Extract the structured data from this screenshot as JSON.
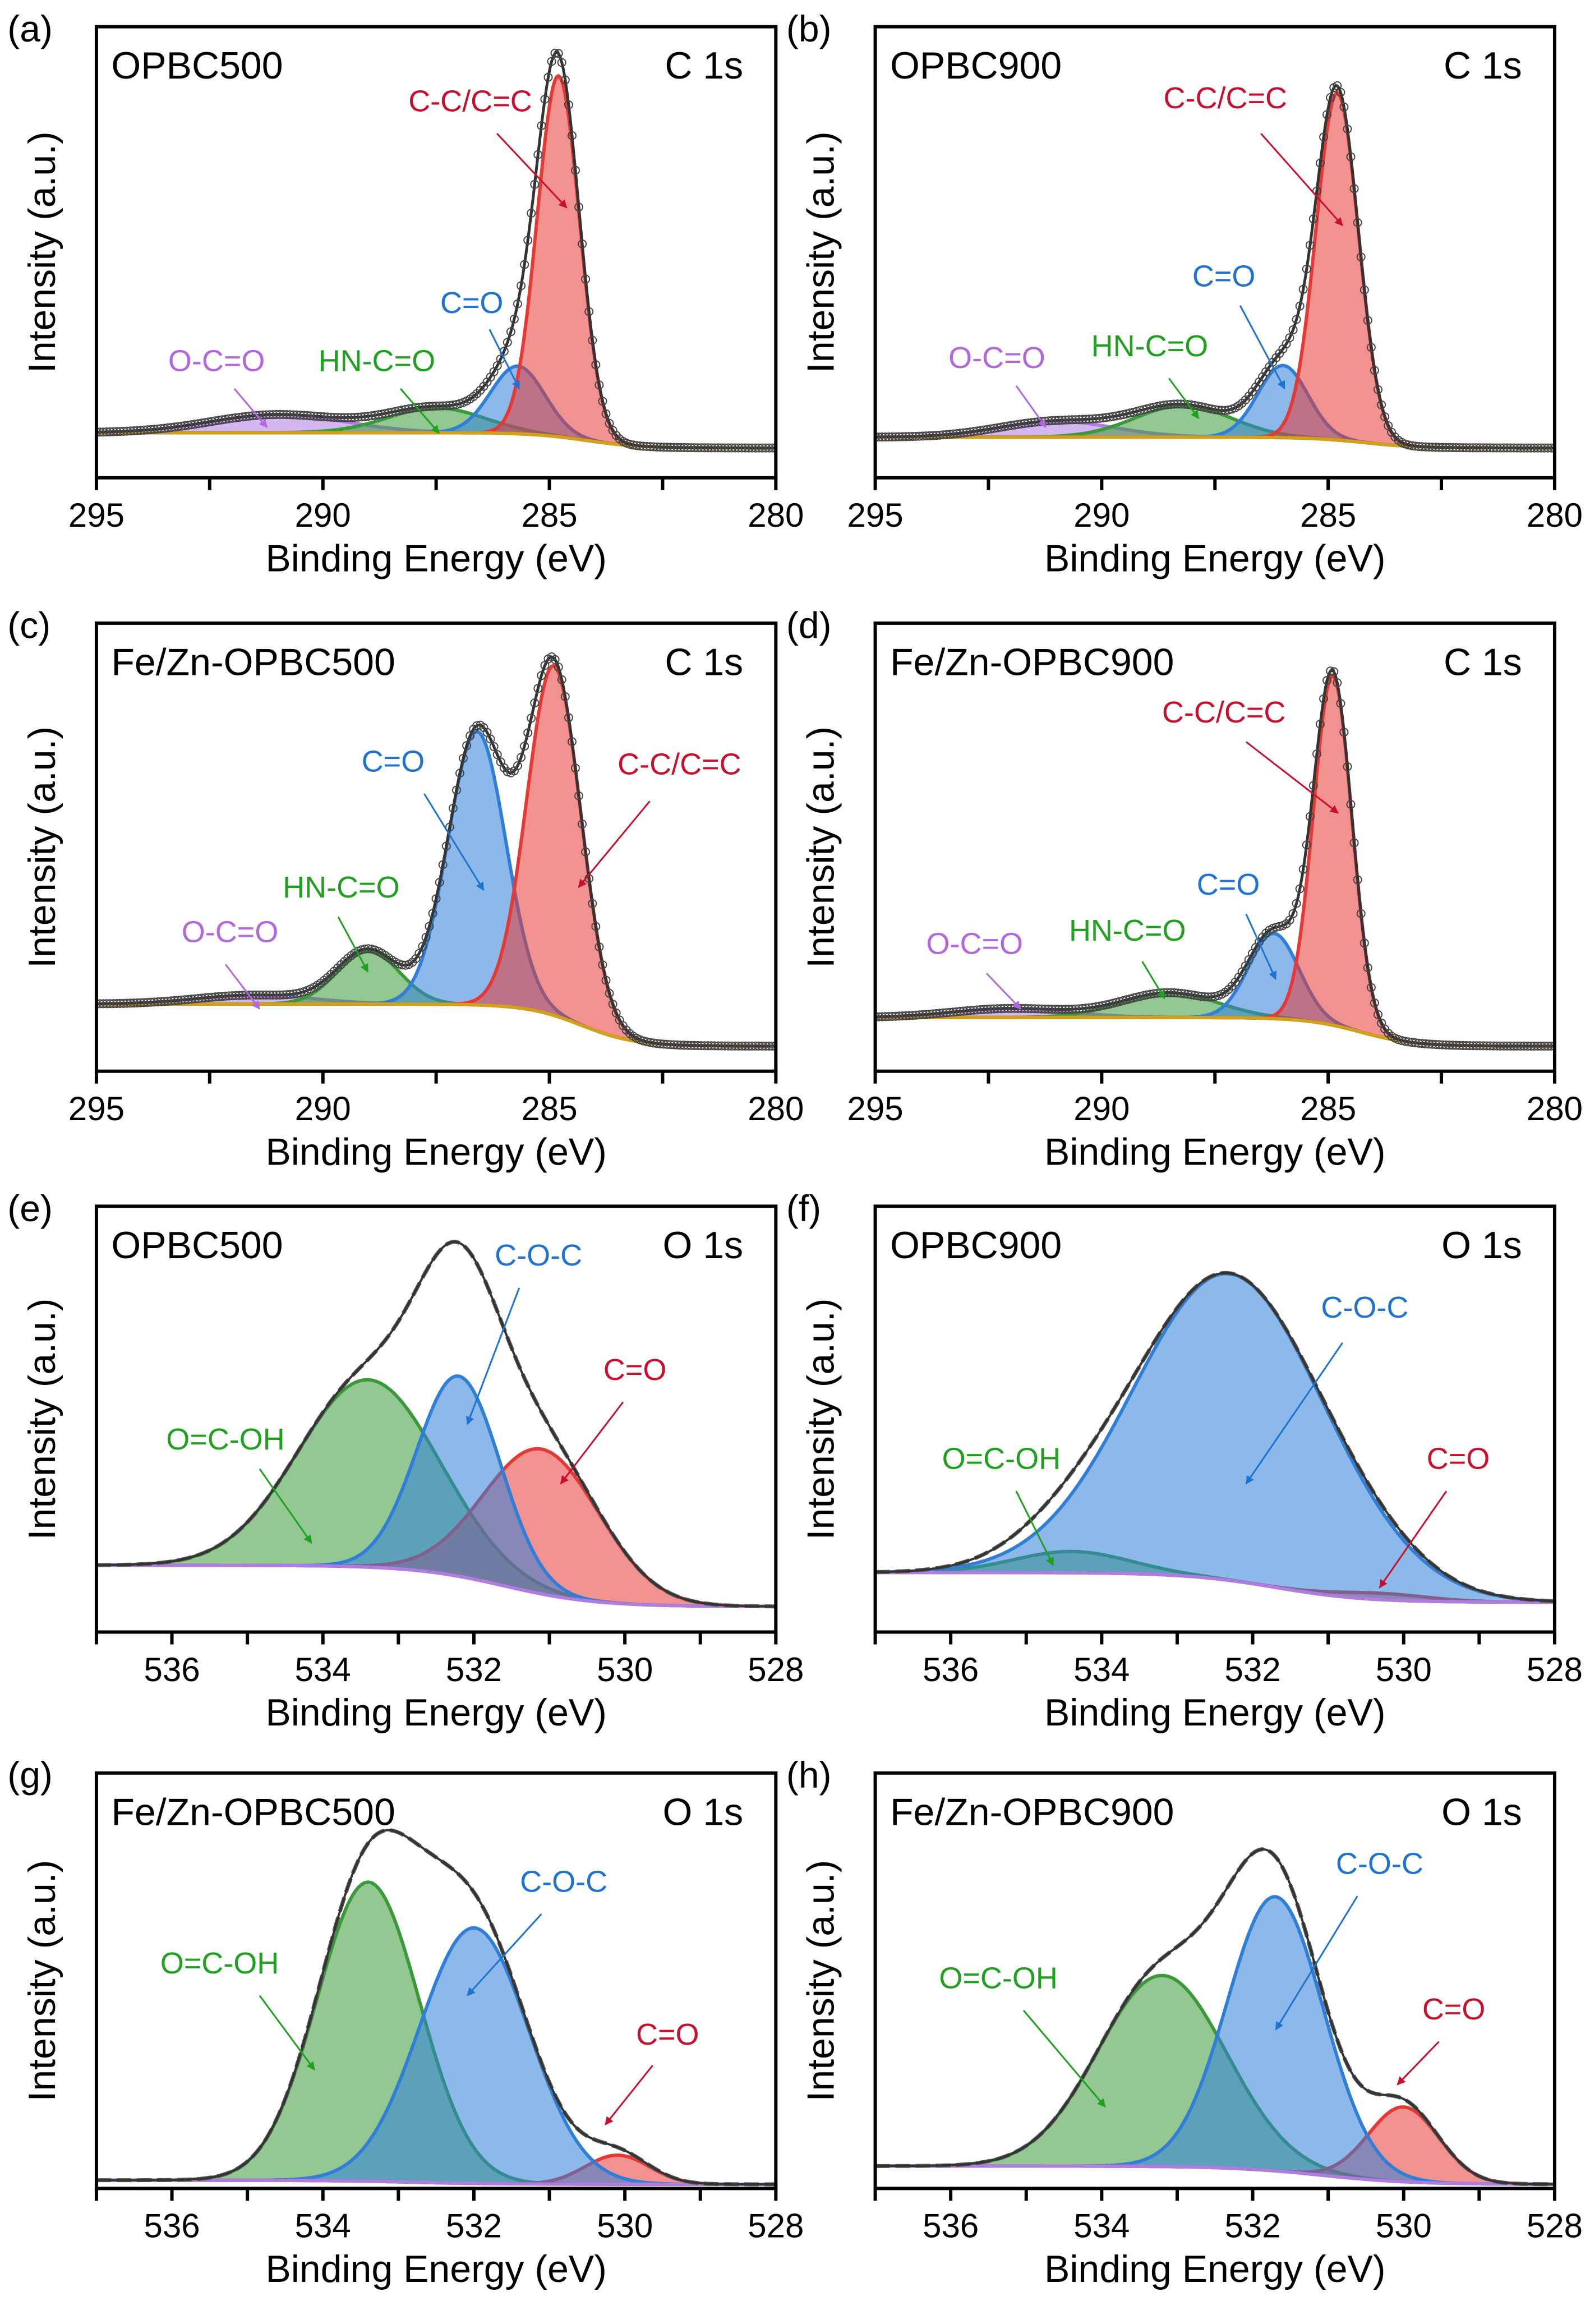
{
  "figure": {
    "xlabel": "Binding Energy (eV)",
    "ylabel": "Intensity (a.u.)"
  },
  "chart_data": [
    {
      "panel": "(a)",
      "sample": "OPBC500",
      "region": "C 1s",
      "type": "area",
      "xlim": [
        295,
        280
      ],
      "ylim": [
        0,
        1
      ],
      "xticks": [
        295,
        290,
        285,
        280
      ],
      "minor_step": 2.5,
      "measured_style": "circles",
      "baseline": [
        0.1,
        0.066
      ],
      "peaks": [
        {
          "name": "C-C/C=C",
          "center": 284.8,
          "fwhm": 1.1,
          "height": 0.8,
          "color": "#e53935"
        },
        {
          "name": "C=O",
          "center": 285.7,
          "fwhm": 1.4,
          "height": 0.15,
          "color": "#2f7fd8"
        },
        {
          "name": "HN-C=O",
          "center": 287.5,
          "fwhm": 2.5,
          "height": 0.055,
          "color": "#3a9a3a"
        },
        {
          "name": "O-C=O",
          "center": 291.0,
          "fwhm": 3.5,
          "height": 0.04,
          "color": "#b07ce0"
        }
      ]
    },
    {
      "panel": "(b)",
      "sample": "OPBC900",
      "region": "C 1s",
      "type": "area",
      "xlim": [
        295,
        280
      ],
      "ylim": [
        0,
        1
      ],
      "xticks": [
        295,
        290,
        285,
        280
      ],
      "minor_step": 2.5,
      "measured_style": "circles",
      "baseline": [
        0.09,
        0.066
      ],
      "peaks": [
        {
          "name": "C-C/C=C",
          "center": 284.8,
          "fwhm": 1.1,
          "height": 0.77,
          "color": "#e53935"
        },
        {
          "name": "C=O",
          "center": 286.0,
          "fwhm": 1.3,
          "height": 0.16,
          "color": "#2f7fd8"
        },
        {
          "name": "HN-C=O",
          "center": 288.2,
          "fwhm": 2.5,
          "height": 0.07,
          "color": "#3a9a3a"
        },
        {
          "name": "O-C=O",
          "center": 291.0,
          "fwhm": 3.0,
          "height": 0.035,
          "color": "#b07ce0"
        }
      ]
    },
    {
      "panel": "(c)",
      "sample": "Fe/Zn-OPBC500",
      "region": "C 1s",
      "type": "area",
      "xlim": [
        295,
        280
      ],
      "ylim": [
        0,
        1
      ],
      "xticks": [
        295,
        290,
        285,
        280
      ],
      "minor_step": 2.5,
      "measured_style": "circles",
      "baseline": [
        0.15,
        0.056
      ],
      "peaks": [
        {
          "name": "C-C/C=C",
          "center": 284.9,
          "fwhm": 1.4,
          "height": 0.78,
          "color": "#e53935"
        },
        {
          "name": "C=O",
          "center": 286.6,
          "fwhm": 1.5,
          "height": 0.61,
          "color": "#2f7fd8"
        },
        {
          "name": "HN-C=O",
          "center": 289.0,
          "fwhm": 1.6,
          "height": 0.12,
          "color": "#3a9a3a"
        },
        {
          "name": "O-C=O",
          "center": 291.5,
          "fwhm": 3.0,
          "height": 0.02,
          "color": "#b07ce0"
        }
      ]
    },
    {
      "panel": "(d)",
      "sample": "Fe/Zn-OPBC900",
      "region": "C 1s",
      "type": "area",
      "xlim": [
        295,
        280
      ],
      "ylim": [
        0,
        1
      ],
      "xticks": [
        295,
        290,
        285,
        280
      ],
      "minor_step": 2.5,
      "measured_style": "circles",
      "baseline": [
        0.12,
        0.056
      ],
      "peaks": [
        {
          "name": "C-C/C=C",
          "center": 284.9,
          "fwhm": 1.0,
          "height": 0.78,
          "color": "#e53935"
        },
        {
          "name": "C=O",
          "center": 286.2,
          "fwhm": 1.3,
          "height": 0.19,
          "color": "#2f7fd8"
        },
        {
          "name": "HN-C=O",
          "center": 288.5,
          "fwhm": 2.5,
          "height": 0.055,
          "color": "#3a9a3a"
        },
        {
          "name": "O-C=O",
          "center": 292.0,
          "fwhm": 3.0,
          "height": 0.02,
          "color": "#b07ce0"
        }
      ]
    },
    {
      "panel": "(e)",
      "sample": "OPBC500",
      "region": "O 1s",
      "type": "area",
      "xlim": [
        537,
        528
      ],
      "ylim": [
        0,
        1
      ],
      "xticks": [
        536,
        534,
        532,
        530,
        528
      ],
      "minor_step": 1,
      "measured_style": "dashed",
      "baseline": [
        0.157,
        0.06
      ],
      "peaks": [
        {
          "name": "C-O-C",
          "center": 532.2,
          "fwhm": 1.3,
          "height": 0.47,
          "color": "#2f7fd8"
        },
        {
          "name": "C=O",
          "center": 531.1,
          "fwhm": 1.8,
          "height": 0.34,
          "color": "#e53935"
        },
        {
          "name": "O=C-OH",
          "center": 533.4,
          "fwhm": 2.2,
          "height": 0.44,
          "color": "#3a9a3a"
        }
      ]
    },
    {
      "panel": "(f)",
      "sample": "OPBC900",
      "region": "O 1s",
      "type": "area",
      "xlim": [
        537,
        528
      ],
      "ylim": [
        0,
        1
      ],
      "xticks": [
        536,
        534,
        532,
        530,
        528
      ],
      "minor_step": 1,
      "measured_style": "dashed",
      "baseline": [
        0.14,
        0.07
      ],
      "peaks": [
        {
          "name": "C-O-C",
          "center": 532.3,
          "fwhm": 3.0,
          "height": 0.72,
          "color": "#2f7fd8"
        },
        {
          "name": "C=O",
          "center": 530.3,
          "fwhm": 1.5,
          "height": 0.015,
          "color": "#e53935"
        },
        {
          "name": "O=C-OH",
          "center": 534.4,
          "fwhm": 1.8,
          "height": 0.05,
          "color": "#3a9a3a"
        }
      ]
    },
    {
      "panel": "(g)",
      "sample": "Fe/Zn-OPBC500",
      "region": "O 1s",
      "type": "area",
      "xlim": [
        537,
        528
      ],
      "ylim": [
        0,
        1
      ],
      "xticks": [
        536,
        534,
        532,
        530,
        528
      ],
      "minor_step": 1,
      "measured_style": "dashed",
      "baseline": [
        0.02,
        0.01
      ],
      "peaks": [
        {
          "name": "C-O-C",
          "center": 532.0,
          "fwhm": 1.7,
          "height": 0.615,
          "color": "#2f7fd8"
        },
        {
          "name": "C=O",
          "center": 530.1,
          "fwhm": 1.0,
          "height": 0.07,
          "color": "#e53935"
        },
        {
          "name": "O=C-OH",
          "center": 533.4,
          "fwhm": 1.6,
          "height": 0.72,
          "color": "#3a9a3a"
        }
      ]
    },
    {
      "panel": "(h)",
      "sample": "Fe/Zn-OPBC900",
      "region": "O 1s",
      "type": "area",
      "xlim": [
        537,
        528
      ],
      "ylim": [
        0,
        1
      ],
      "xticks": [
        536,
        534,
        532,
        530,
        528
      ],
      "minor_step": 1,
      "measured_style": "dashed",
      "baseline": [
        0.054,
        0.01
      ],
      "peaks": [
        {
          "name": "C-O-C",
          "center": 531.7,
          "fwhm": 1.5,
          "height": 0.66,
          "color": "#2f7fd8"
        },
        {
          "name": "C=O",
          "center": 530.0,
          "fwhm": 1.1,
          "height": 0.18,
          "color": "#e53935"
        },
        {
          "name": "O=C-OH",
          "center": 533.2,
          "fwhm": 2.0,
          "height": 0.46,
          "color": "#3a9a3a"
        }
      ]
    }
  ]
}
